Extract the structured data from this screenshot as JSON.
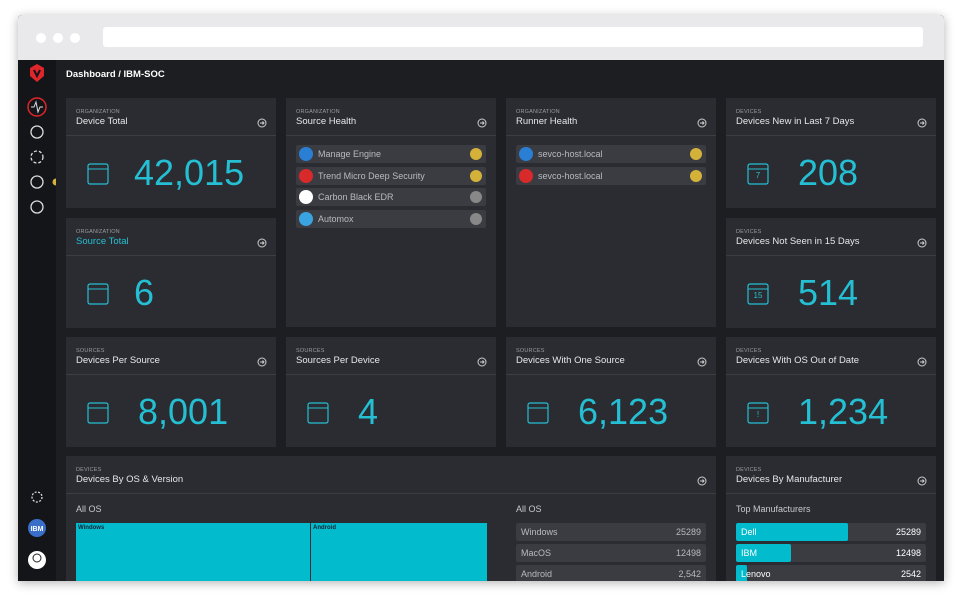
{
  "breadcrumb": {
    "root": "Dashboard",
    "current": "/ IBM-SOC"
  },
  "stat_cards": [
    {
      "category": "ORGANIZATION",
      "title": "Device Total",
      "value": "42,015"
    },
    {
      "category": "ORGANIZATION",
      "title": "Source Total",
      "value": "6"
    },
    {
      "category": "DEVICES",
      "title": "Devices New in Last 7 Days",
      "value": "208",
      "icon_label": "7"
    },
    {
      "category": "DEVICES",
      "title": "Devices Not Seen in 15 Days",
      "value": "514",
      "icon_label": "15"
    },
    {
      "category": "SOURCES",
      "title": "Devices Per Source",
      "value": "8,001"
    },
    {
      "category": "SOURCES",
      "title": "Sources Per Device",
      "value": "4"
    },
    {
      "category": "SOURCES",
      "title": "Devices With One Source",
      "value": "6,123"
    },
    {
      "category": "DEVICES",
      "title": "Devices With OS Out of Date",
      "value": "1,234",
      "icon_label": "!"
    }
  ],
  "source_health": {
    "category": "ORGANIZATION",
    "title": "Source Health",
    "items": [
      "Manage Engine",
      "Trend Micro Deep Security",
      "Carbon Black EDR",
      "Automox"
    ]
  },
  "runner_health": {
    "category": "ORGANIZATION",
    "title": "Runner Health",
    "items": [
      "sevco-host.local",
      "sevco-host.local"
    ]
  },
  "os_card": {
    "category": "DEVICES",
    "title": "Devices By OS & Version",
    "treemap_title": "All OS",
    "treemap": [
      "Windows",
      "Android"
    ],
    "list_title": "All OS",
    "rows": [
      [
        "Windows",
        "25289"
      ],
      [
        "MacOS",
        "12498"
      ],
      [
        "Android",
        "2,542"
      ]
    ]
  },
  "manufacturer_card": {
    "category": "DEVICES",
    "title": "Devices By Manufacturer",
    "list_title": "Top Manufacturers",
    "categories": [
      "Dell",
      "IBM",
      "Lenovo"
    ],
    "values": [
      25289,
      12498,
      2542
    ]
  },
  "sidebar": {
    "org_badge": "IBM"
  }
}
